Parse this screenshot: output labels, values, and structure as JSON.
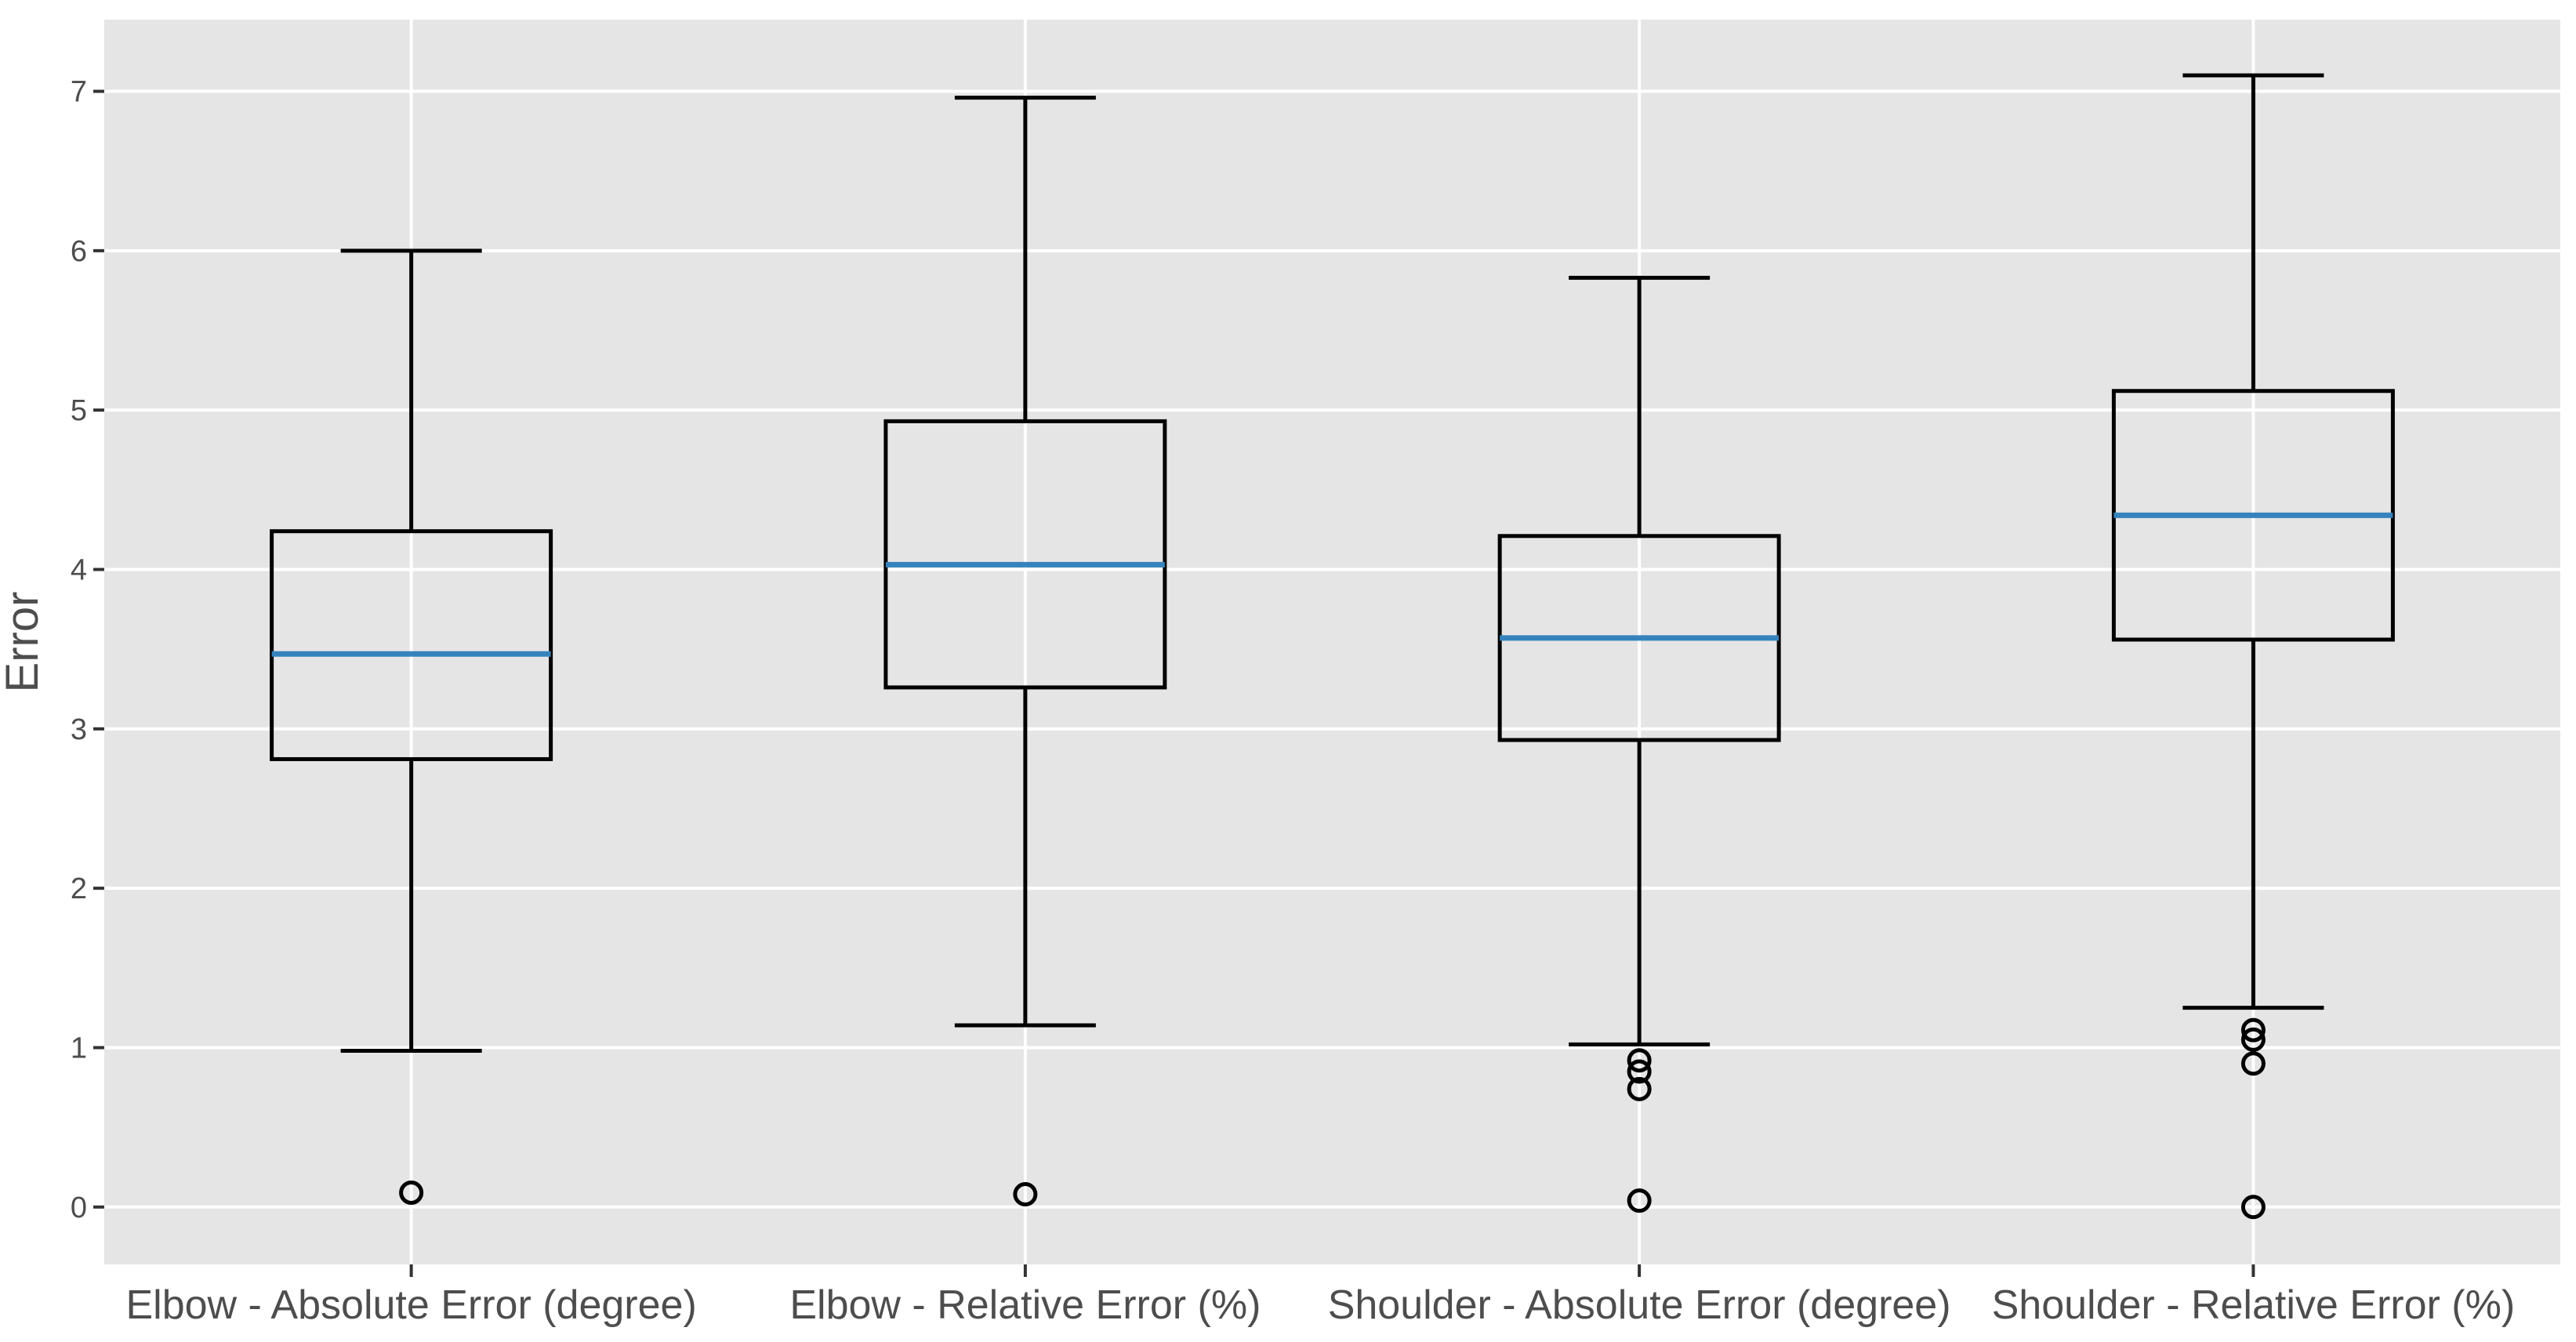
{
  "figure": {
    "background": "#ffffff"
  },
  "chart_data": {
    "type": "box",
    "title": "",
    "xlabel": "",
    "ylabel": "Error",
    "legend": "none",
    "grid": "white major gridlines on gray panel; horizontal at integers, vertical at category centers",
    "panel_bg": "#e5e5e5",
    "grid_color": "#ffffff",
    "box_stroke_color": "#000000",
    "median_color": "#3583bc",
    "axis_text_color": "#4d4d4d",
    "tick_color": "#333333",
    "ylim": [
      -0.36,
      7.45
    ],
    "yticks": [
      0,
      1,
      2,
      3,
      4,
      5,
      6,
      7
    ],
    "categories": [
      "Elbow - Absolute Error (degree)",
      "Elbow - Relative Error (%)",
      "Shoulder - Absolute Error (degree)",
      "Shoulder - Relative Error (%)"
    ],
    "series": [
      {
        "name": "Elbow - Absolute Error (degree)",
        "whisker_low": 0.98,
        "q1": 2.81,
        "median": 3.47,
        "q3": 4.24,
        "whisker_high": 6.0,
        "outliers": [
          0.09
        ]
      },
      {
        "name": "Elbow - Relative Error (%)",
        "whisker_low": 1.14,
        "q1": 3.26,
        "median": 4.03,
        "q3": 4.93,
        "whisker_high": 6.96,
        "outliers": [
          0.08
        ]
      },
      {
        "name": "Shoulder - Absolute Error (degree)",
        "whisker_low": 1.02,
        "q1": 2.93,
        "median": 3.57,
        "q3": 4.21,
        "whisker_high": 5.83,
        "outliers": [
          0.92,
          0.85,
          0.74,
          0.04
        ]
      },
      {
        "name": "Shoulder - Relative Error (%)",
        "whisker_low": 1.25,
        "q1": 3.56,
        "median": 4.34,
        "q3": 5.12,
        "whisker_high": 7.1,
        "outliers": [
          1.11,
          1.05,
          0.9,
          0.0
        ]
      }
    ]
  }
}
